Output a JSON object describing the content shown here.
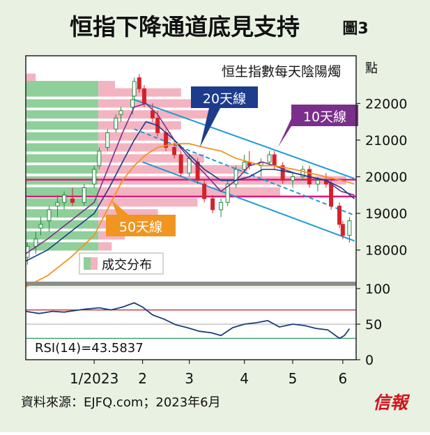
{
  "header": {
    "title": "恒指下降通道底見支持",
    "figure_label": "圖3"
  },
  "chart_data": [
    {
      "type": "candlestick",
      "title": "恒生指數每天陰陽燭",
      "y_unit": "點",
      "ylim": [
        17100,
        23300
      ],
      "yticks": [
        18000,
        19000,
        20000,
        21000,
        22000
      ],
      "x_tick_labels": [
        "1/2023",
        "2",
        "3",
        "4",
        "5",
        "6"
      ],
      "x_tick_dates": [
        "2023-01-03",
        "2023-02-01",
        "2023-03-01",
        "2023-04-03",
        "2023-05-02",
        "2023-06-01"
      ],
      "x_range": [
        "2022-11-23",
        "2023-06-09"
      ],
      "ohlc": [
        [
          "2022-11-24",
          17800,
          18200,
          17600,
          18100
        ],
        [
          "2022-11-29",
          18100,
          18500,
          17900,
          18300
        ],
        [
          "2022-12-02",
          18600,
          18900,
          18400,
          18700
        ],
        [
          "2022-12-07",
          18800,
          19200,
          18500,
          19100
        ],
        [
          "2022-12-12",
          19200,
          19500,
          18900,
          19300
        ],
        [
          "2022-12-16",
          19300,
          19600,
          19100,
          19500
        ],
        [
          "2022-12-21",
          19400,
          19700,
          19200,
          19300
        ],
        [
          "2022-12-28",
          19300,
          19800,
          19200,
          19700
        ],
        [
          "2023-01-03",
          19800,
          20300,
          19700,
          20200
        ],
        [
          "2023-01-06",
          20300,
          20800,
          20200,
          20700
        ],
        [
          "2023-01-11",
          20800,
          21300,
          20700,
          21200
        ],
        [
          "2023-01-16",
          21300,
          21700,
          21200,
          21600
        ],
        [
          "2023-01-19",
          21700,
          21900,
          21500,
          21800
        ],
        [
          "2023-01-26",
          21900,
          22200,
          21700,
          22100
        ],
        [
          "2023-01-27",
          22200,
          22700,
          22100,
          22600
        ],
        [
          "2023-01-30",
          22700,
          22800,
          22300,
          22400
        ],
        [
          "2023-02-02",
          22400,
          22500,
          21900,
          22000
        ],
        [
          "2023-02-07",
          21800,
          22000,
          21500,
          21600
        ],
        [
          "2023-02-10",
          21600,
          21800,
          21100,
          21200
        ],
        [
          "2023-02-15",
          21200,
          21300,
          20700,
          20800
        ],
        [
          "2023-02-20",
          20800,
          21000,
          20500,
          20600
        ],
        [
          "2023-02-24",
          20600,
          20700,
          20000,
          20100
        ],
        [
          "2023-03-01",
          20100,
          20600,
          20000,
          20500
        ],
        [
          "2023-03-06",
          20400,
          20500,
          19800,
          19900
        ],
        [
          "2023-03-10",
          19800,
          19900,
          19300,
          19400
        ],
        [
          "2023-03-15",
          19400,
          19500,
          19000,
          19100
        ],
        [
          "2023-03-20",
          19100,
          19400,
          18900,
          19300
        ],
        [
          "2023-03-24",
          19300,
          19900,
          19200,
          19800
        ],
        [
          "2023-03-29",
          19800,
          20300,
          19700,
          20200
        ],
        [
          "2023-04-03",
          20200,
          20600,
          20100,
          20400
        ],
        [
          "2023-04-06",
          20400,
          20700,
          20200,
          20300
        ],
        [
          "2023-04-13",
          20300,
          20500,
          20000,
          20400
        ],
        [
          "2023-04-18",
          20400,
          20700,
          20300,
          20600
        ],
        [
          "2023-04-21",
          20600,
          20700,
          20200,
          20300
        ],
        [
          "2023-04-26",
          20300,
          20400,
          19800,
          19900
        ],
        [
          "2023-05-02",
          19900,
          20100,
          19700,
          20000
        ],
        [
          "2023-05-08",
          20000,
          20300,
          19900,
          20200
        ],
        [
          "2023-05-12",
          20200,
          20300,
          19700,
          19800
        ],
        [
          "2023-05-17",
          19800,
          20000,
          19600,
          19900
        ],
        [
          "2023-05-22",
          19900,
          20100,
          19700,
          19800
        ],
        [
          "2023-05-25",
          19800,
          19900,
          19100,
          19200
        ],
        [
          "2023-05-30",
          19200,
          19300,
          18600,
          18700
        ],
        [
          "2023-06-01",
          18700,
          18800,
          18300,
          18400
        ],
        [
          "2023-06-05",
          18400,
          18900,
          18200,
          18800
        ]
      ],
      "moving_averages": [
        {
          "name": "10天線",
          "color": "#7a2f8a",
          "points": [
            [
              "2022-11-23",
              17900
            ],
            [
              "2022-12-06",
              18300
            ],
            [
              "2022-12-20",
              18800
            ],
            [
              "2023-01-03",
              19300
            ],
            [
              "2023-01-12",
              20300
            ],
            [
              "2023-01-20",
              21200
            ],
            [
              "2023-01-27",
              21900
            ],
            [
              "2023-02-03",
              22000
            ],
            [
              "2023-02-10",
              21700
            ],
            [
              "2023-02-20",
              21000
            ],
            [
              "2023-03-01",
              20500
            ],
            [
              "2023-03-10",
              20100
            ],
            [
              "2023-03-20",
              19600
            ],
            [
              "2023-03-29",
              19900
            ],
            [
              "2023-04-06",
              20300
            ],
            [
              "2023-04-14",
              20400
            ],
            [
              "2023-04-21",
              20300
            ],
            [
              "2023-05-03",
              20100
            ],
            [
              "2023-05-12",
              20000
            ],
            [
              "2023-05-22",
              19900
            ],
            [
              "2023-05-31",
              19600
            ],
            [
              "2023-06-08",
              19500
            ]
          ]
        },
        {
          "name": "20天線",
          "color": "#163a8a",
          "points": [
            [
              "2022-11-23",
              17700
            ],
            [
              "2022-12-06",
              18000
            ],
            [
              "2022-12-20",
              18500
            ],
            [
              "2023-01-03",
              19000
            ],
            [
              "2023-01-12",
              19700
            ],
            [
              "2023-01-20",
              20400
            ],
            [
              "2023-01-27",
              21000
            ],
            [
              "2023-02-03",
              21500
            ],
            [
              "2023-02-10",
              21400
            ],
            [
              "2023-02-20",
              21000
            ],
            [
              "2023-03-01",
              20600
            ],
            [
              "2023-03-10",
              20200
            ],
            [
              "2023-03-20",
              19900
            ],
            [
              "2023-03-29",
              19900
            ],
            [
              "2023-04-06",
              20000
            ],
            [
              "2023-04-14",
              20200
            ],
            [
              "2023-04-21",
              20200
            ],
            [
              "2023-05-03",
              20100
            ],
            [
              "2023-05-12",
              20000
            ],
            [
              "2023-05-22",
              19900
            ],
            [
              "2023-05-31",
              19700
            ],
            [
              "2023-06-08",
              19400
            ]
          ]
        },
        {
          "name": "50天線",
          "color": "#f0951f",
          "points": [
            [
              "2022-11-23",
              17000
            ],
            [
              "2022-12-06",
              17300
            ],
            [
              "2022-12-20",
              17800
            ],
            [
              "2023-01-03",
              18400
            ],
            [
              "2023-01-12",
              19200
            ],
            [
              "2023-01-20",
              19900
            ],
            [
              "2023-01-27",
              20300
            ],
            [
              "2023-02-03",
              20600
            ],
            [
              "2023-02-10",
              20800
            ],
            [
              "2023-02-20",
              20900
            ],
            [
              "2023-03-01",
              20900
            ],
            [
              "2023-03-10",
              20800
            ],
            [
              "2023-03-20",
              20700
            ],
            [
              "2023-03-29",
              20500
            ],
            [
              "2023-04-06",
              20400
            ],
            [
              "2023-04-14",
              20300
            ],
            [
              "2023-04-21",
              20300
            ],
            [
              "2023-05-03",
              20200
            ],
            [
              "2023-05-12",
              20100
            ],
            [
              "2023-05-22",
              20000
            ],
            [
              "2023-05-31",
              19900
            ],
            [
              "2023-06-08",
              19800
            ]
          ]
        }
      ],
      "channel_lines": {
        "color": "#1e9ad7",
        "upper": [
          [
            "2023-01-27",
            22100
          ],
          [
            "2023-06-08",
            19950
          ]
        ],
        "middle": [
          [
            "2023-01-27",
            21300
          ],
          [
            "2023-06-08",
            18950
          ]
        ],
        "lower": [
          [
            "2023-02-01",
            20400
          ],
          [
            "2023-06-08",
            18250
          ]
        ]
      },
      "horizontal_lines": {
        "color": "#e0157f",
        "levels": [
          19920,
          19460
        ]
      },
      "volume_profile": {
        "label": "成交分布",
        "colors": {
          "up": "#8fcf9a",
          "down": "#f4b3c0"
        },
        "bins": [
          {
            "price": 22700,
            "up": 0.0,
            "down": 0.03
          },
          {
            "price": 22500,
            "up": 0.22,
            "down": 0.05
          },
          {
            "price": 22300,
            "up": 0.22,
            "down": 0.25
          },
          {
            "price": 22000,
            "up": 0.22,
            "down": 0.28
          },
          {
            "price": 21700,
            "up": 0.22,
            "down": 0.35
          },
          {
            "price": 21400,
            "up": 0.22,
            "down": 0.25
          },
          {
            "price": 21100,
            "up": 0.22,
            "down": 0.22
          },
          {
            "price": 20800,
            "up": 0.22,
            "down": 0.25
          },
          {
            "price": 20500,
            "up": 0.22,
            "down": 0.32
          },
          {
            "price": 20200,
            "up": 0.22,
            "down": 0.45
          },
          {
            "price": 19900,
            "up": 0.22,
            "down": 0.75
          },
          {
            "price": 19600,
            "up": 0.22,
            "down": 0.55
          },
          {
            "price": 19300,
            "up": 0.22,
            "down": 0.3
          },
          {
            "price": 19000,
            "up": 0.22,
            "down": 0.18
          },
          {
            "price": 18700,
            "up": 0.22,
            "down": 0.1
          },
          {
            "price": 18400,
            "up": 0.22,
            "down": 0.08
          },
          {
            "price": 18100,
            "up": 0.22,
            "down": 0.04
          }
        ]
      },
      "annotations": {
        "ma20": "20天線",
        "ma10": "10天線",
        "ma50": "50天線"
      }
    },
    {
      "type": "line",
      "series_name": "RSI(14)",
      "value_text": "RSI(14)=43.5837",
      "ylim": [
        0,
        100
      ],
      "yticks": [
        0,
        50,
        100
      ],
      "reference_lines": [
        {
          "value": 70,
          "color": "#c0202a"
        },
        {
          "value": 50,
          "color": "#b8b8b8"
        },
        {
          "value": 30,
          "color": "#2e9a5a"
        }
      ],
      "color": "#183f7a",
      "points": [
        [
          "2022-11-23",
          68
        ],
        [
          "2022-12-01",
          65
        ],
        [
          "2022-12-09",
          68
        ],
        [
          "2022-12-16",
          67
        ],
        [
          "2022-12-28",
          71
        ],
        [
          "2023-01-06",
          73
        ],
        [
          "2023-01-13",
          70
        ],
        [
          "2023-01-20",
          74
        ],
        [
          "2023-01-27",
          80
        ],
        [
          "2023-02-01",
          74
        ],
        [
          "2023-02-07",
          63
        ],
        [
          "2023-02-14",
          57
        ],
        [
          "2023-02-21",
          49
        ],
        [
          "2023-02-28",
          45
        ],
        [
          "2023-03-07",
          40
        ],
        [
          "2023-03-14",
          38
        ],
        [
          "2023-03-20",
          34
        ],
        [
          "2023-03-27",
          45
        ],
        [
          "2023-04-03",
          50
        ],
        [
          "2023-04-10",
          52
        ],
        [
          "2023-04-17",
          55
        ],
        [
          "2023-04-24",
          46
        ],
        [
          "2023-05-02",
          50
        ],
        [
          "2023-05-09",
          48
        ],
        [
          "2023-05-16",
          44
        ],
        [
          "2023-05-23",
          42
        ],
        [
          "2023-05-30",
          30
        ],
        [
          "2023-06-02",
          34
        ],
        [
          "2023-06-05",
          43.5837
        ]
      ]
    }
  ],
  "footer": {
    "source": "資料來源：EJFQ.com；2023年6月",
    "brand": "信報"
  }
}
